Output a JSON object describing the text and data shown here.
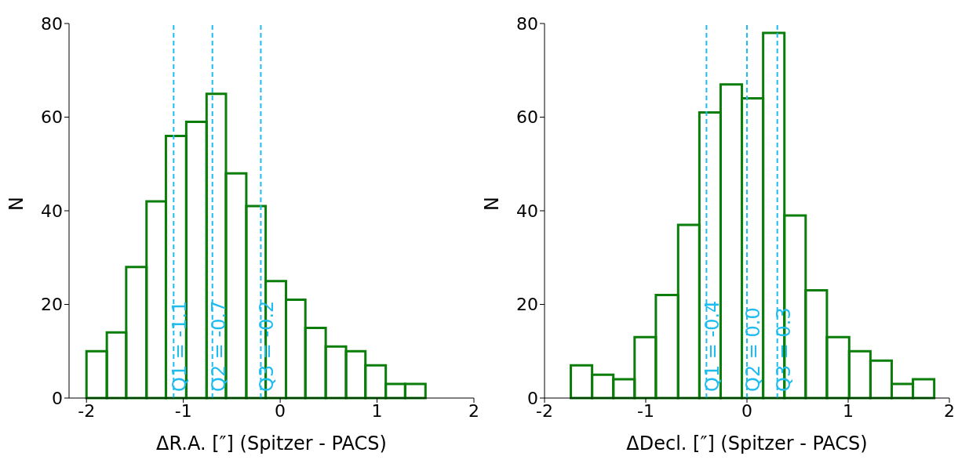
{
  "chart_data": [
    {
      "type": "histogram",
      "xlabel": "ΔR.A. [″] (Spitzer - PACS)",
      "ylabel": "N",
      "color": "#0a7d0a",
      "bins": [
        -2,
        -1.79,
        -1.59,
        -1.38,
        -1.18,
        -0.97,
        -0.76,
        -0.56,
        -0.35,
        -0.15,
        0.06,
        0.26,
        0.47,
        0.68,
        0.88,
        1.09,
        1.29,
        1.5
      ],
      "values": [
        10,
        14,
        28,
        42,
        56,
        59,
        65,
        48,
        41,
        25,
        21,
        15,
        11,
        10,
        7,
        3,
        3
      ],
      "xlim": [
        -2.18,
        2
      ],
      "xticks": [
        -2,
        -1,
        0,
        1,
        2
      ],
      "ylim": [
        0,
        80
      ],
      "yticks": [
        0,
        20,
        40,
        60,
        80
      ],
      "ref_lines": [
        {
          "axis": "x",
          "value": -1.1,
          "label": "Q1 = -1.1",
          "color": "#1ebcef",
          "line_style": "dashed"
        },
        {
          "axis": "x",
          "value": -0.7,
          "label": "Q2 = -0.7",
          "color": "#1ebcef",
          "line_style": "dashed"
        },
        {
          "axis": "x",
          "value": -0.2,
          "label": "Q3 = -0.2",
          "color": "#1ebcef",
          "line_style": "dashed"
        }
      ]
    },
    {
      "type": "histogram",
      "xlabel": "ΔDecl. [″] (Spitzer - PACS)",
      "ylabel": "N",
      "color": "#0a7d0a",
      "bins": [
        -1.74,
        -1.53,
        -1.32,
        -1.11,
        -0.9,
        -0.68,
        -0.47,
        -0.26,
        -0.05,
        0.16,
        0.37,
        0.58,
        0.79,
        1.01,
        1.22,
        1.43,
        1.64,
        1.85
      ],
      "values": [
        7,
        5,
        4,
        13,
        22,
        37,
        61,
        67,
        64,
        78,
        39,
        23,
        13,
        10,
        8,
        3,
        4
      ],
      "xlim": [
        -2,
        2
      ],
      "xticks": [
        -2,
        -1,
        0,
        1,
        2
      ],
      "ylim": [
        0,
        80
      ],
      "yticks": [
        0,
        20,
        40,
        60,
        80
      ],
      "ref_lines": [
        {
          "axis": "x",
          "value": -0.4,
          "label": "Q1 = -0.4",
          "color": "#1ebcef",
          "line_style": "dashed"
        },
        {
          "axis": "x",
          "value": 0.0,
          "label": "Q2 = 0.0",
          "color": "#1ebcef",
          "line_style": "dashed"
        },
        {
          "axis": "x",
          "value": 0.3,
          "label": "Q3 = 0.3",
          "color": "#1ebcef",
          "line_style": "dashed"
        }
      ]
    }
  ]
}
